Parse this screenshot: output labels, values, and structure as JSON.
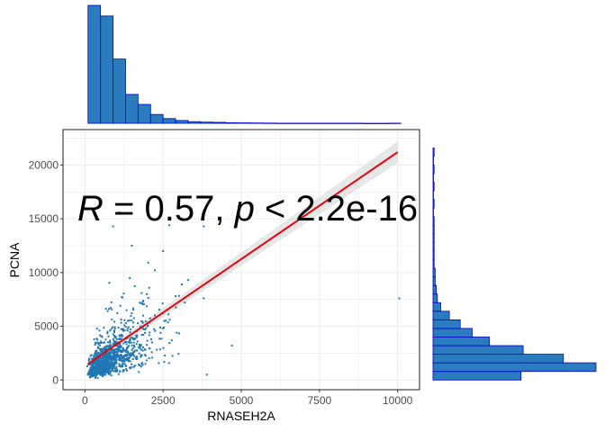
{
  "chart_data": {
    "type": "scatter",
    "title": "",
    "xlabel": "RNASEH2A",
    "ylabel": "PCNA",
    "xlim": [
      -700,
      10700
    ],
    "ylim": [
      -900,
      23300
    ],
    "x_ticks": [
      0,
      2500,
      5000,
      7500,
      10000
    ],
    "y_ticks": [
      0,
      5000,
      10000,
      15000,
      20000
    ],
    "grid": true,
    "annotation": {
      "r_symbol": "R",
      "r_text": " = 0.57, ",
      "p_symbol": "p",
      "p_text": " < 2.2e-16"
    },
    "regression": {
      "x_start": 100,
      "y_start": 1500,
      "x_end": 10000,
      "y_end": 21200,
      "ci_halfwidth_start": 250,
      "ci_halfwidth_end": 1000
    },
    "scatter_cloud": {
      "count": 1200,
      "x_median": 700,
      "y_median": 2000
    },
    "outliers": [
      {
        "x": 10050,
        "y": 7600
      },
      {
        "x": 2700,
        "y": 14400
      },
      {
        "x": 3800,
        "y": 14300
      },
      {
        "x": 3100,
        "y": 8900
      },
      {
        "x": 3800,
        "y": 7600
      },
      {
        "x": 3300,
        "y": 9300
      },
      {
        "x": 2500,
        "y": 12000
      },
      {
        "x": 1100,
        "y": 15600
      },
      {
        "x": 900,
        "y": 14300
      },
      {
        "x": 1500,
        "y": 12500
      },
      {
        "x": 2900,
        "y": 7800
      },
      {
        "x": 4700,
        "y": 3200
      },
      {
        "x": 3900,
        "y": 500
      }
    ],
    "x_histogram": {
      "bin_width": 400,
      "bin_start": 100,
      "counts": [
        1000,
        910,
        545,
        245,
        160,
        75,
        40,
        24,
        14,
        10,
        8,
        5,
        4,
        3,
        2,
        1,
        1,
        1,
        1,
        1,
        1,
        1,
        0,
        0,
        1
      ]
    },
    "y_histogram": {
      "bin_width": 800,
      "bin_start": 0,
      "counts": [
        81,
        150,
        120,
        83,
        52,
        36,
        25,
        15,
        7,
        4,
        3,
        2,
        2,
        1,
        1,
        1,
        1,
        1,
        1,
        0,
        1,
        0,
        1,
        0,
        1,
        0,
        1
      ]
    },
    "colors": {
      "points": "#1f77b4",
      "bar_fill": "#2b7bbf",
      "bar_outline": "#0000cc",
      "line": "#e8000b",
      "ci_band": "#d3d3d3",
      "grid": "#ebebeb",
      "panel_border": "#333333"
    }
  }
}
